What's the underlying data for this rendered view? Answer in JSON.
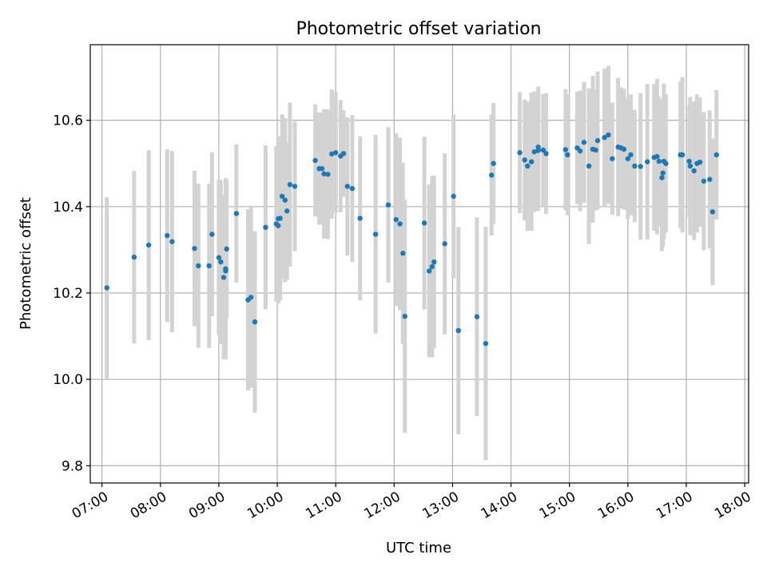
{
  "chart_data": {
    "type": "scatter",
    "title": "Photometric offset variation",
    "xlabel": "UTC time",
    "ylabel": "Photometric offset",
    "grid": true,
    "legend": "none",
    "xlim": [
      "06:48",
      "18:04"
    ],
    "ylim": [
      9.76,
      10.775
    ],
    "x_ticks": [
      "07:00",
      "08:00",
      "09:00",
      "10:00",
      "11:00",
      "12:00",
      "13:00",
      "14:00",
      "15:00",
      "16:00",
      "17:00",
      "18:00"
    ],
    "y_ticks": [
      "9.8",
      "10.0",
      "10.2",
      "10.4",
      "10.6"
    ],
    "colors": {
      "point": "#1f77b4",
      "errorbar": "#d3d3d3",
      "grid": "#b0b0b0",
      "axis": "#000000"
    },
    "series": [
      {
        "x": [
          "07:05",
          "07:33",
          "07:48",
          "08:07",
          "08:12",
          "08:35",
          "08:39",
          "08:50",
          "08:53",
          "09:00",
          "09:02",
          "09:05",
          "09:07",
          "09:07",
          "09:08",
          "09:18",
          "09:30",
          "09:33",
          "09:37",
          "09:48",
          "09:59",
          "10:01",
          "10:01",
          "10:03",
          "10:05",
          "10:08",
          "10:10",
          "10:13",
          "10:18",
          "10:39",
          "10:43",
          "10:46",
          "10:48",
          "10:52",
          "10:56",
          "11:00",
          "11:05",
          "11:08",
          "11:12",
          "11:17",
          "11:25",
          "11:41",
          "11:54",
          "12:02",
          "12:06",
          "12:09",
          "12:11",
          "12:31",
          "12:36",
          "12:39",
          "12:41",
          "12:52",
          "13:01",
          "13:06",
          "13:25",
          "13:34",
          "13:40",
          "13:42",
          "14:09",
          "14:14",
          "14:17",
          "14:21",
          "14:24",
          "14:28",
          "14:28",
          "14:33",
          "14:36",
          "14:56",
          "14:58",
          "15:08",
          "15:11",
          "15:15",
          "15:20",
          "15:24",
          "15:27",
          "15:29",
          "15:36",
          "15:40",
          "15:44",
          "15:50",
          "15:53",
          "15:56",
          "16:00",
          "16:03",
          "16:07",
          "16:13",
          "16:20",
          "16:27",
          "16:30",
          "16:32",
          "16:35",
          "16:36",
          "16:37",
          "16:39",
          "16:54",
          "16:56",
          "17:03",
          "17:04",
          "17:08",
          "17:11",
          "17:14",
          "17:18",
          "17:24",
          "17:27",
          "17:31"
        ],
        "y": [
          10.212,
          10.283,
          10.311,
          10.333,
          10.319,
          10.303,
          10.263,
          10.263,
          10.336,
          10.282,
          10.272,
          10.236,
          10.256,
          10.251,
          10.302,
          10.384,
          10.184,
          10.19,
          10.133,
          10.352,
          10.36,
          10.356,
          10.372,
          10.373,
          10.424,
          10.415,
          10.39,
          10.451,
          10.447,
          10.507,
          10.488,
          10.488,
          10.476,
          10.475,
          10.522,
          10.525,
          10.517,
          10.523,
          10.447,
          10.442,
          10.373,
          10.336,
          10.404,
          10.37,
          10.36,
          10.292,
          10.146,
          10.362,
          10.251,
          10.261,
          10.272,
          10.314,
          10.424,
          10.113,
          10.145,
          10.083,
          10.473,
          10.5,
          10.525,
          10.508,
          10.494,
          10.504,
          10.527,
          10.53,
          10.538,
          10.531,
          10.523,
          10.532,
          10.52,
          10.536,
          10.529,
          10.549,
          10.494,
          10.533,
          10.531,
          10.553,
          10.56,
          10.566,
          10.511,
          10.538,
          10.536,
          10.533,
          10.511,
          10.52,
          10.494,
          10.493,
          10.504,
          10.514,
          10.516,
          10.505,
          10.467,
          10.478,
          10.505,
          10.5,
          10.52,
          10.52,
          10.505,
          10.494,
          10.483,
          10.5,
          10.503,
          10.459,
          10.463,
          10.388,
          10.52
        ],
        "err": [
          0.21,
          0.2,
          0.22,
          0.2,
          0.21,
          0.18,
          0.19,
          0.19,
          0.19,
          0.18,
          0.19,
          0.19,
          0.21,
          0.17,
          0.16,
          0.16,
          0.21,
          0.21,
          0.21,
          0.19,
          0.18,
          0.18,
          0.19,
          0.19,
          0.19,
          0.19,
          0.16,
          0.19,
          0.15,
          0.13,
          0.13,
          0.13,
          0.15,
          0.15,
          0.15,
          0.14,
          0.13,
          0.1,
          0.16,
          0.17,
          0.19,
          0.23,
          0.18,
          0.2,
          0.2,
          0.21,
          0.27,
          0.2,
          0.2,
          0.21,
          0.2,
          0.21,
          0.19,
          0.24,
          0.23,
          0.27,
          0.14,
          0.14,
          0.14,
          0.14,
          0.15,
          0.16,
          0.14,
          0.14,
          0.14,
          0.13,
          0.14,
          0.14,
          0.14,
          0.13,
          0.14,
          0.14,
          0.18,
          0.17,
          0.14,
          0.16,
          0.16,
          0.16,
          0.13,
          0.16,
          0.14,
          0.14,
          0.14,
          0.14,
          0.13,
          0.17,
          0.18,
          0.17,
          0.18,
          0.15,
          0.17,
          0.17,
          0.18,
          0.16,
          0.17,
          0.18,
          0.13,
          0.16,
          0.16,
          0.16,
          0.15,
          0.16,
          0.16,
          0.17,
          0.15
        ]
      }
    ]
  }
}
